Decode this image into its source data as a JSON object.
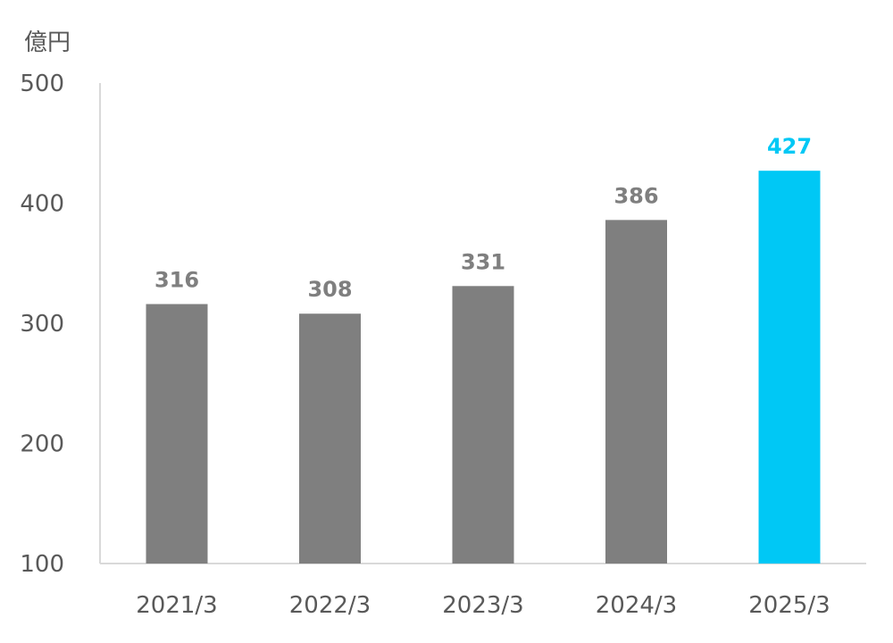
{
  "chart_data": {
    "type": "bar",
    "title": "",
    "unit": "億円",
    "categories": [
      "2021/3",
      "2022/3",
      "2023/3",
      "2024/3",
      "2025/3"
    ],
    "values": [
      316,
      308,
      331,
      386,
      427
    ],
    "value_labels": [
      "316",
      "308",
      "331",
      "386",
      "427"
    ],
    "ylim": [
      100,
      500
    ],
    "yticks": [
      100,
      200,
      300,
      400,
      500
    ],
    "ytick_labels": [
      "100",
      "200",
      "300",
      "400",
      "500"
    ],
    "grid": false,
    "legend": "none",
    "colors": {
      "default_bar": "#7f7f7f",
      "highlight_bar": "#00c8f5",
      "default_label": "#7f7f7f",
      "highlight_label": "#00c8f5",
      "axis": "#d9d9d9"
    },
    "highlight_index": 4
  }
}
